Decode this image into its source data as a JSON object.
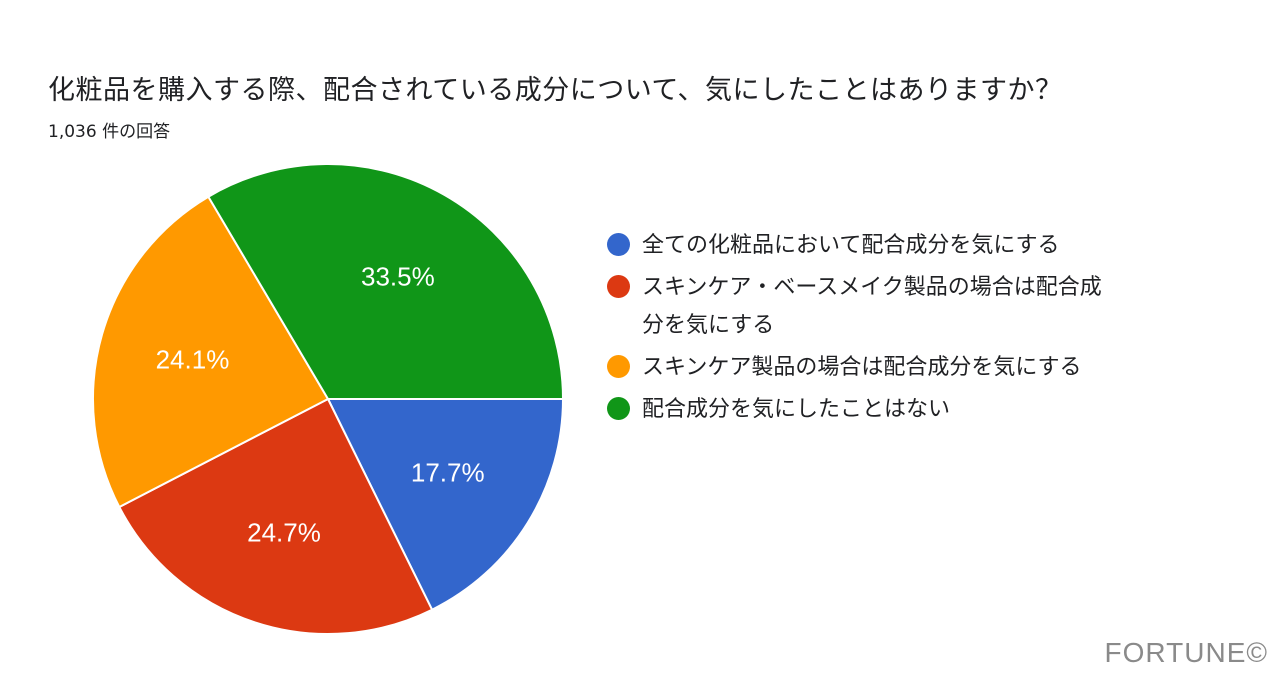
{
  "chart_data": {
    "type": "pie",
    "title": "化粧品を購入する際、配合されている成分について、気にしたことはありますか？",
    "subtitle": "1,036 件の回答",
    "categories": [
      "全ての化粧品において配合成分を気にする",
      "スキンケア・ベースメイク製品の場合は配合成分を気にする",
      "スキンケア製品の場合は配合成分を気にする",
      "配合成分を気にしたことはない"
    ],
    "values": [
      17.7,
      24.7,
      24.1,
      33.5
    ],
    "labels": [
      "17.7%",
      "24.7%",
      "24.1%",
      "33.5%"
    ],
    "colors": [
      "#3366cc",
      "#dc3912",
      "#ff9900",
      "#109618"
    ],
    "legend_position": "right",
    "total_responses": 1036
  },
  "watermark": "FORTUNE©"
}
